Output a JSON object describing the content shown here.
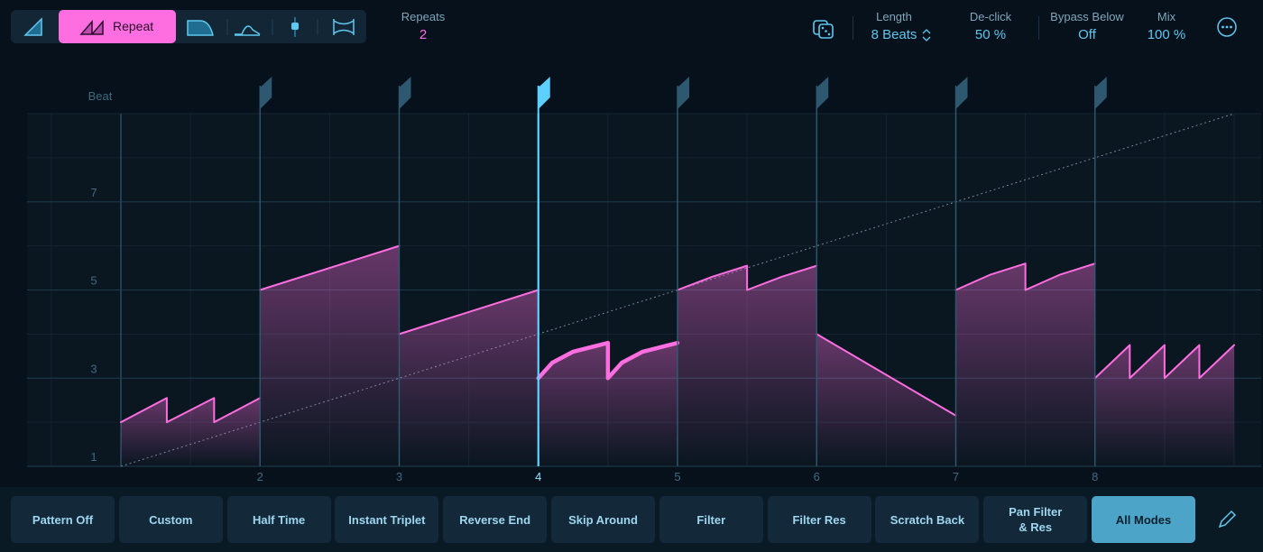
{
  "toolbar": {
    "active_mode": "Repeat"
  },
  "params": [
    {
      "label": "Repeats",
      "value": "2"
    },
    {
      "label": "Length",
      "value": "8 Beats"
    },
    {
      "label": "De-click",
      "value": "50 %"
    },
    {
      "label": "Bypass Below",
      "value": "Off"
    },
    {
      "label": "Mix",
      "value": "100 %"
    }
  ],
  "graph": {
    "axis_title": "Beat",
    "xlim": [
      1,
      9
    ],
    "ylim": [
      1,
      9
    ],
    "xticks": [
      2,
      3,
      4,
      5,
      6,
      7,
      8
    ],
    "yticks": [
      1,
      3,
      5,
      7
    ],
    "current_beat": 4,
    "segments": [
      {
        "x": [
          1,
          1.33,
          1.33,
          1.67,
          1.67,
          2
        ],
        "y": [
          2,
          2.55,
          2,
          2.55,
          2,
          2.55
        ]
      },
      {
        "x": [
          2,
          3
        ],
        "y": [
          5,
          6
        ]
      },
      {
        "x": [
          3,
          4
        ],
        "y": [
          4,
          5
        ]
      },
      {
        "x": [
          4,
          4.1,
          4.25,
          4.5,
          4.5,
          4.6,
          4.75,
          5
        ],
        "y": [
          3,
          3.35,
          3.6,
          3.8,
          3,
          3.35,
          3.6,
          3.8
        ],
        "thick": true
      },
      {
        "x": [
          5,
          5.25,
          5.5,
          5.5,
          5.75,
          6
        ],
        "y": [
          5,
          5.3,
          5.55,
          5,
          5.3,
          5.55
        ]
      },
      {
        "x": [
          6,
          7
        ],
        "y": [
          4,
          2.15
        ]
      },
      {
        "x": [
          7,
          7.25,
          7.5,
          7.5,
          7.75,
          8
        ],
        "y": [
          5,
          5.35,
          5.6,
          5,
          5.35,
          5.6
        ]
      },
      {
        "x": [
          8,
          8.25,
          8.25,
          8.5,
          8.5,
          8.75,
          8.75,
          9
        ],
        "y": [
          3,
          3.75,
          3,
          3.75,
          3,
          3.75,
          3,
          3.75
        ]
      }
    ]
  },
  "patterns": [
    "Pattern Off",
    "Custom",
    "Half Time",
    "Instant Triplet",
    "Reverse End",
    "Skip Around",
    "Filter",
    "Filter Res",
    "Scratch Back",
    "Pan Filter\n& Res",
    "All Modes"
  ]
}
